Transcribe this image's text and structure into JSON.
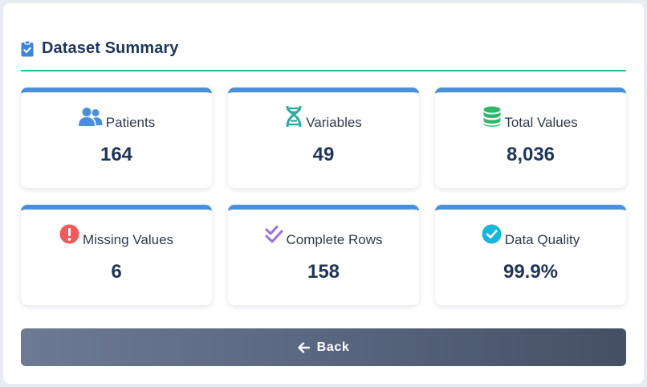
{
  "header": {
    "title": "Dataset Summary",
    "icon": "clipboard-check-icon"
  },
  "cards": [
    {
      "label": "Patients",
      "value": "164",
      "icon": "users-icon",
      "icon_color": "#4a90d9"
    },
    {
      "label": "Variables",
      "value": "49",
      "icon": "dna-icon",
      "icon_color": "#2eaa9e"
    },
    {
      "label": "Total Values",
      "value": "8,036",
      "icon": "database-icon",
      "icon_color": "#35b56a"
    },
    {
      "label": "Missing Values",
      "value": "6",
      "icon": "exclamation-circle-icon",
      "icon_color": "#ef5b5b"
    },
    {
      "label": "Complete Rows",
      "value": "158",
      "icon": "double-check-icon",
      "icon_color": "#9b6fe0"
    },
    {
      "label": "Data Quality",
      "value": "99.9%",
      "icon": "check-circle-icon",
      "icon_color": "#1ab6d9"
    }
  ],
  "back_button": {
    "label": "Back",
    "icon": "arrow-left-icon"
  },
  "colors": {
    "title": "#1e3557",
    "divider": "#3aaea3",
    "card_top_border": "#4a90d9"
  }
}
